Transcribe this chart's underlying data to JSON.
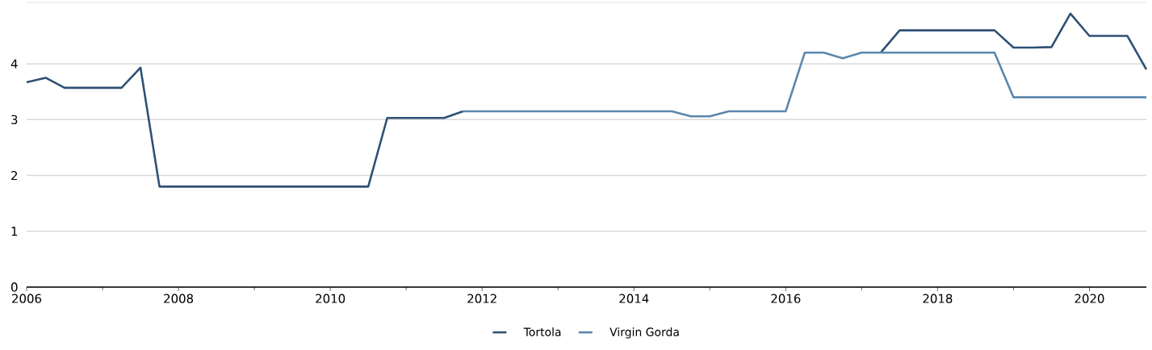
{
  "chart_data": {
    "type": "line",
    "x": [
      2006,
      2006.25,
      2006.5,
      2006.75,
      2007,
      2007.25,
      2007.5,
      2007.75,
      2008,
      2008.25,
      2008.5,
      2008.75,
      2009,
      2009.25,
      2009.5,
      2009.75,
      2010,
      2010.25,
      2010.5,
      2010.75,
      2011,
      2011.25,
      2011.5,
      2011.75,
      2012,
      2012.25,
      2012.5,
      2012.75,
      2013,
      2013.25,
      2013.5,
      2013.75,
      2014,
      2014.25,
      2014.5,
      2014.75,
      2015,
      2015.25,
      2015.5,
      2015.75,
      2016,
      2016.25,
      2016.5,
      2016.75,
      2017,
      2017.25,
      2017.5,
      2017.75,
      2018,
      2018.25,
      2018.5,
      2018.75,
      2019,
      2019.25,
      2019.5,
      2019.75,
      2020,
      2020.25,
      2020.5,
      2020.75
    ],
    "series": [
      {
        "name": "Tortola",
        "color": "#2f5075",
        "values": [
          3.67,
          3.75,
          3.57,
          3.57,
          3.57,
          3.57,
          3.93,
          1.8,
          1.8,
          1.8,
          1.8,
          1.8,
          1.8,
          1.8,
          1.8,
          1.8,
          1.8,
          1.8,
          1.8,
          3.03,
          3.03,
          3.03,
          3.03,
          3.15,
          null,
          null,
          null,
          null,
          null,
          null,
          null,
          null,
          null,
          null,
          null,
          null,
          null,
          null,
          null,
          null,
          null,
          null,
          null,
          null,
          null,
          4.2,
          4.6,
          4.6,
          4.6,
          4.6,
          4.6,
          4.6,
          4.29,
          4.29,
          4.3,
          4.9,
          4.5,
          4.5,
          4.5,
          3.9
        ]
      },
      {
        "name": "Virgin Gorda",
        "color": "#5b87ad",
        "values": [
          null,
          null,
          null,
          null,
          null,
          null,
          null,
          null,
          null,
          null,
          null,
          null,
          null,
          null,
          null,
          null,
          null,
          null,
          null,
          null,
          null,
          null,
          null,
          3.15,
          3.15,
          3.15,
          3.15,
          3.15,
          3.15,
          3.15,
          3.15,
          3.15,
          3.15,
          3.15,
          3.15,
          3.06,
          3.06,
          3.15,
          3.15,
          3.15,
          3.15,
          4.2,
          4.2,
          4.1,
          4.2,
          4.2,
          4.2,
          4.2,
          4.2,
          4.2,
          4.2,
          4.2,
          3.4,
          3.4,
          3.4,
          3.4,
          3.4,
          3.4,
          3.4,
          3.4
        ]
      }
    ],
    "xlim": [
      2006,
      2020.75
    ],
    "ylim": [
      0,
      5.1
    ],
    "xticks": [
      2006,
      2008,
      2010,
      2012,
      2014,
      2016,
      2018,
      2020
    ],
    "yticks": [
      0,
      1,
      2,
      3,
      4
    ],
    "grid": "y",
    "legend": "bottom",
    "marker": "none",
    "line_style": "solid"
  }
}
